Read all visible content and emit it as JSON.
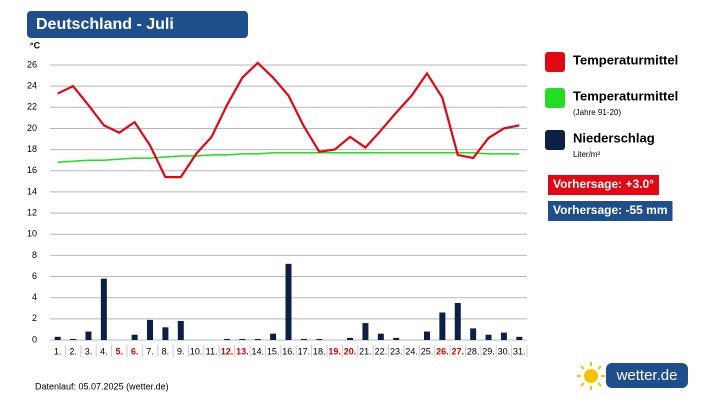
{
  "chart_data": {
    "type": "bar-line",
    "title": "Deutschland - Juli",
    "y_unit": "°C",
    "categories": [
      "1.",
      "2.",
      "3.",
      "4.",
      "5.",
      "6.",
      "7.",
      "8.",
      "9.",
      "10.",
      "11.",
      "12.",
      "13.",
      "14.",
      "15.",
      "16.",
      "17.",
      "18.",
      "19.",
      "20.",
      "21.",
      "22.",
      "23.",
      "24.",
      "25.",
      "26.",
      "27.",
      "28.",
      "29.",
      "30.",
      "31."
    ],
    "highlight_indices": [
      4,
      5,
      11,
      12,
      18,
      19,
      25,
      26
    ],
    "highlight_color": "#d40000",
    "ylim": [
      0,
      26
    ],
    "yticks": [
      0,
      2,
      4,
      6,
      8,
      10,
      12,
      14,
      16,
      18,
      20,
      22,
      24,
      26
    ],
    "grid": true,
    "series": [
      {
        "name": "Temperaturmittel",
        "color": "#e30613",
        "kind": "line",
        "values": [
          23.3,
          24,
          22.2,
          20.3,
          19.6,
          20.6,
          18.4,
          15.4,
          15.4,
          17.6,
          19.2,
          22.2,
          24.8,
          26.2,
          24.8,
          23.1,
          20.2,
          17.8,
          18,
          19.2,
          18.2,
          19.8,
          21.5,
          23.1,
          25.2,
          22.9,
          17.5,
          17.2,
          19.1,
          20,
          20.3
        ]
      },
      {
        "name": "Temperaturmittel",
        "subtitle": "(Jahre 91-20)",
        "color": "#22dd22",
        "kind": "line",
        "values": [
          16.8,
          16.9,
          17,
          17,
          17.1,
          17.2,
          17.2,
          17.3,
          17.4,
          17.4,
          17.5,
          17.5,
          17.6,
          17.6,
          17.7,
          17.7,
          17.7,
          17.7,
          17.7,
          17.7,
          17.7,
          17.7,
          17.7,
          17.7,
          17.7,
          17.7,
          17.7,
          17.7,
          17.6,
          17.6,
          17.6
        ]
      },
      {
        "name": "Niederschlag",
        "subtitle": "Liter/m²",
        "color": "#0d1f45",
        "kind": "bar",
        "values": [
          0.3,
          0.1,
          0.8,
          5.8,
          0,
          0.5,
          1.9,
          1.2,
          1.8,
          0,
          0,
          0.1,
          0.1,
          0.1,
          0.6,
          7.2,
          0.1,
          0.1,
          0,
          0.2,
          1.6,
          0.6,
          0.2,
          0,
          0.8,
          2.6,
          3.5,
          1.1,
          0.5,
          0.7,
          0.3
        ]
      }
    ],
    "forecasts": [
      {
        "text": "Vorhersage: +3.0°",
        "color": "#e30613"
      },
      {
        "text": "Vorhersage: -55 mm",
        "color": "#1f4e8c"
      }
    ],
    "footer": "Datenlauf: 05.07.2025 (wetter.de)",
    "logo": "wetter.de"
  }
}
